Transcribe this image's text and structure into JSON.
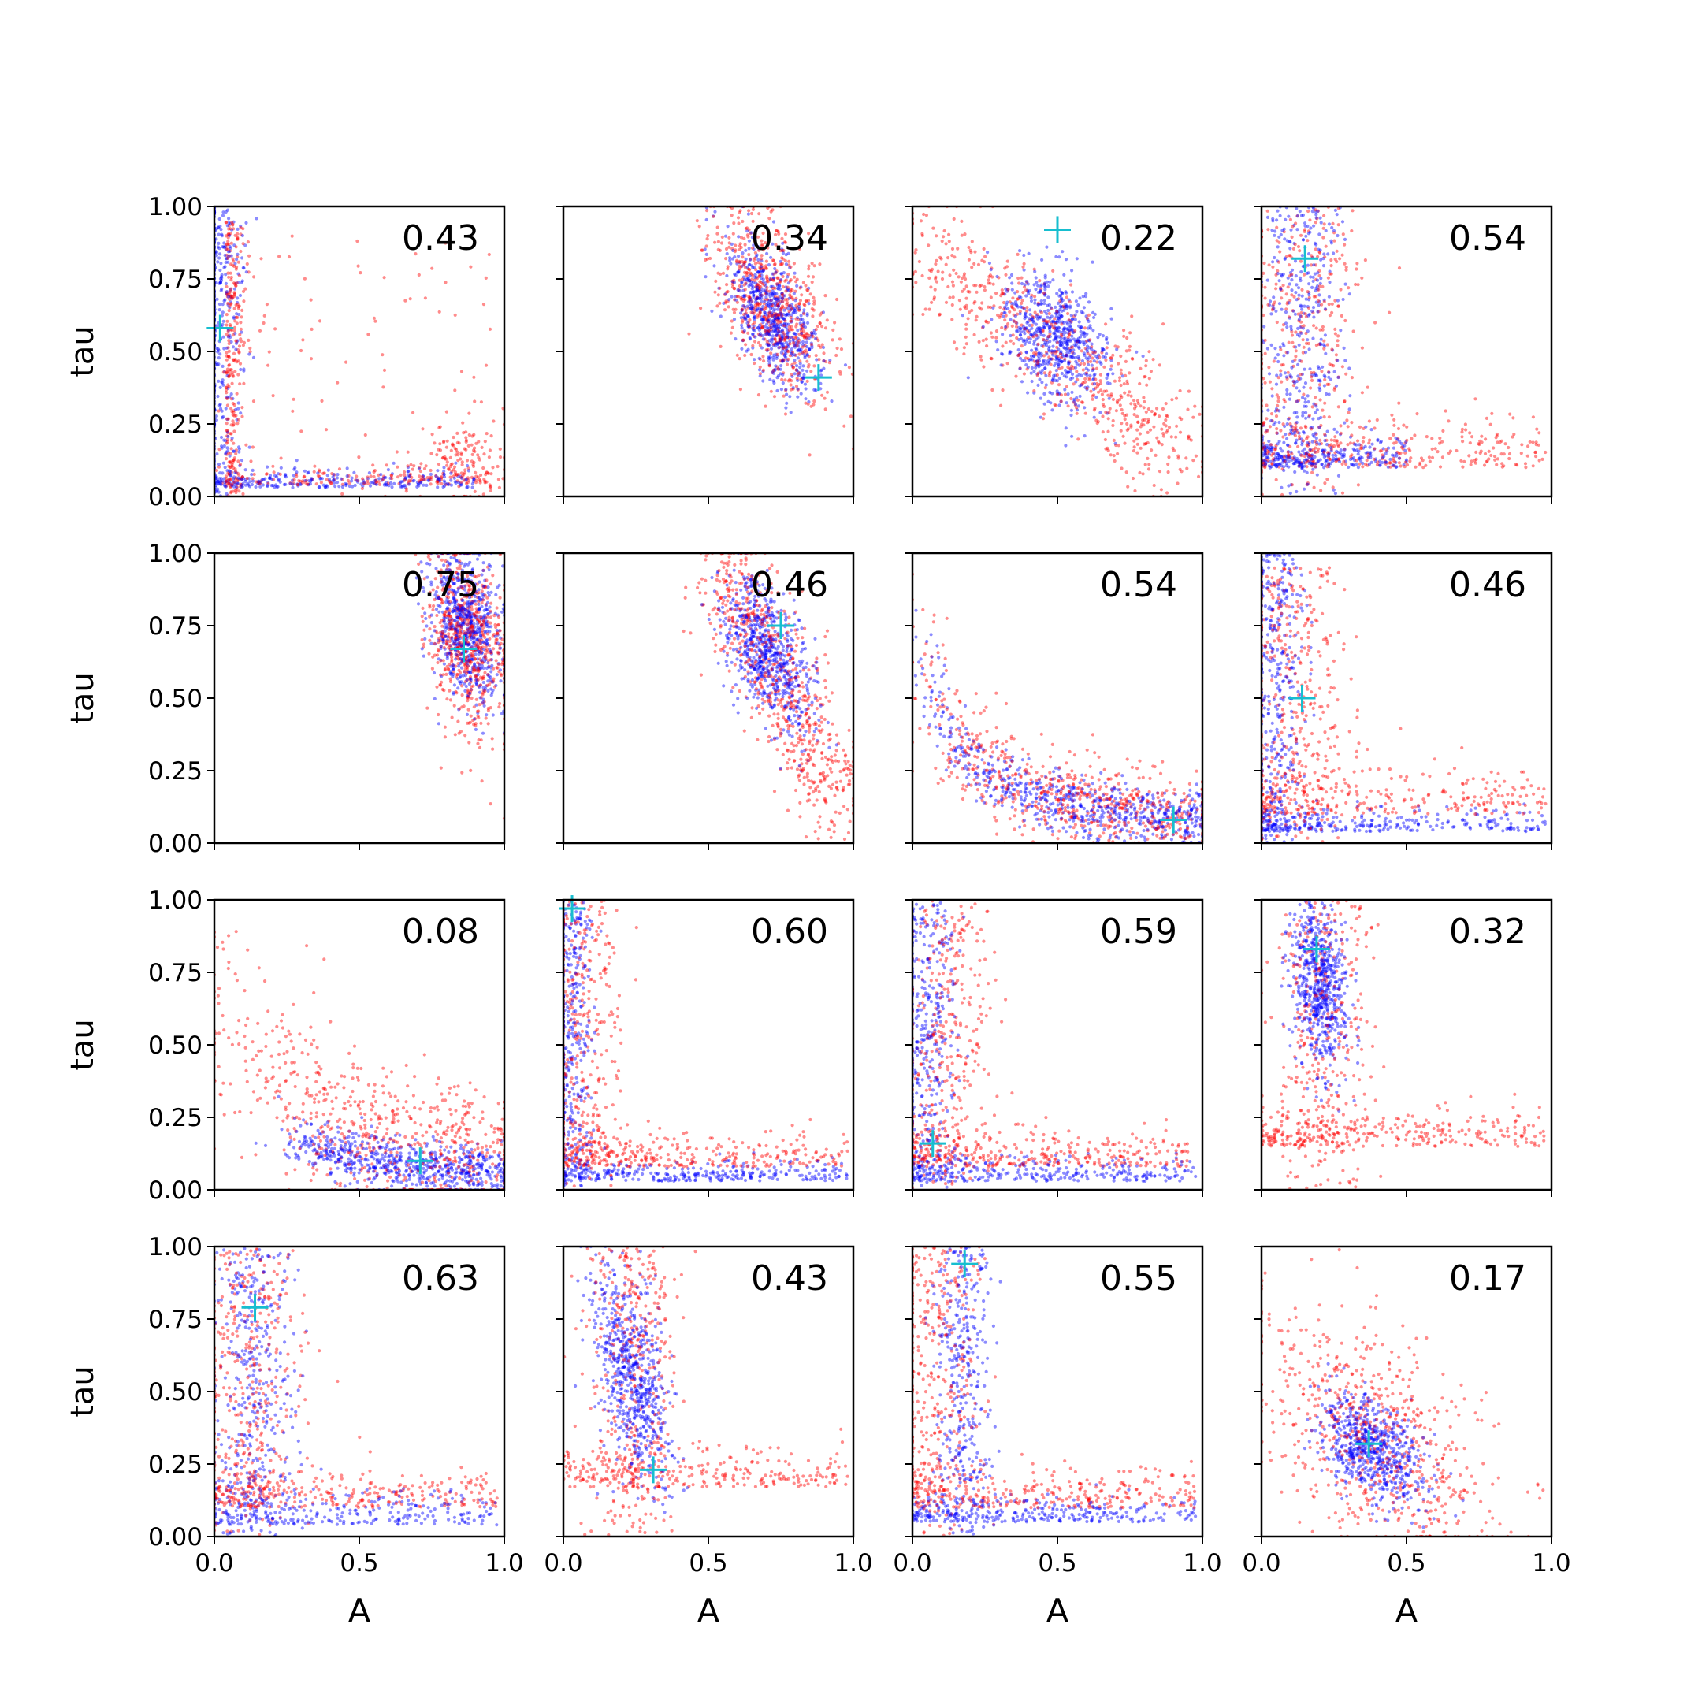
{
  "chart_data": {
    "type": "scatter",
    "layout": "4x4 grid of panels, shared axes",
    "xlabel": "A",
    "ylabel": "tau",
    "xlim": [
      0,
      1
    ],
    "ylim": [
      0,
      1
    ],
    "x_ticks": [
      "0.0",
      "0.5",
      "1.0"
    ],
    "y_ticks": [
      "0.00",
      "0.25",
      "0.50",
      "0.75",
      "1.00"
    ],
    "grid": false,
    "legend": "none",
    "colors": {
      "series_red": "#ff0000",
      "series_blue": "#0000ff",
      "marker": "#17becf"
    },
    "panels": [
      {
        "label": "0.43",
        "marker": [
          0.02,
          0.58
        ],
        "blue": {
          "shape": "L",
          "a": 0.02,
          "t": 0.03,
          "w": 0.04,
          "tailA": 0.9,
          "tailT": 1.0
        },
        "red": {
          "shape": "L-cluster",
          "a": 0.04,
          "t": 0.04,
          "cx": 0.85,
          "cy": 0.12
        }
      },
      {
        "label": "0.34",
        "marker": [
          0.88,
          0.41
        ],
        "blue": {
          "shape": "blob",
          "cx": 0.72,
          "cy": 0.62,
          "sx": 0.08,
          "sy": 0.13,
          "rho": -0.6
        },
        "red": {
          "shape": "blob",
          "cx": 0.72,
          "cy": 0.66,
          "sx": 0.11,
          "sy": 0.17,
          "rho": -0.55
        }
      },
      {
        "label": "0.22",
        "marker": [
          0.5,
          0.92
        ],
        "blue": {
          "shape": "blob",
          "cx": 0.5,
          "cy": 0.55,
          "sx": 0.09,
          "sy": 0.12,
          "rho": -0.35
        },
        "red": {
          "shape": "band",
          "x0": 0.05,
          "y0": 0.85,
          "x1": 0.95,
          "y1": 0.15,
          "spread": 0.1
        }
      },
      {
        "label": "0.54",
        "marker": [
          0.15,
          0.82
        ],
        "blue": {
          "shape": "L",
          "a": 0.14,
          "t": 0.1,
          "w": 0.07,
          "tailA": 0.5,
          "tailT": 1.0
        },
        "red": {
          "shape": "L",
          "a": 0.15,
          "t": 0.1,
          "w": 0.1,
          "tailA": 0.98,
          "tailT": 1.0
        }
      },
      {
        "label": "0.75",
        "marker": [
          0.86,
          0.67
        ],
        "blue": {
          "shape": "blob",
          "cx": 0.87,
          "cy": 0.74,
          "sx": 0.06,
          "sy": 0.13,
          "rho": -0.3
        },
        "red": {
          "shape": "blob",
          "cx": 0.87,
          "cy": 0.7,
          "sx": 0.07,
          "sy": 0.16,
          "rho": -0.3
        }
      },
      {
        "label": "0.46",
        "marker": [
          0.75,
          0.75
        ],
        "blue": {
          "shape": "blob",
          "cx": 0.7,
          "cy": 0.65,
          "sx": 0.08,
          "sy": 0.13,
          "rho": -0.55
        },
        "red": {
          "shape": "band",
          "x0": 0.55,
          "y0": 0.95,
          "x1": 0.95,
          "y1": 0.15,
          "spread": 0.09
        }
      },
      {
        "label": "0.54",
        "marker": [
          0.9,
          0.08
        ],
        "blue": {
          "shape": "curve",
          "k": 0.09,
          "sx": 0.03,
          "sy": 0.05
        },
        "red": {
          "shape": "curve",
          "k": 0.1,
          "sx": 0.06,
          "sy": 0.08
        }
      },
      {
        "label": "0.46",
        "marker": [
          0.14,
          0.5
        ],
        "blue": {
          "shape": "L",
          "a": 0.05,
          "t": 0.04,
          "w": 0.05,
          "tailA": 0.98,
          "tailT": 1.0
        },
        "red": {
          "shape": "L",
          "a": 0.1,
          "t": 0.1,
          "w": 0.1,
          "tailA": 0.98,
          "tailT": 0.95
        }
      },
      {
        "label": "0.08",
        "marker": [
          0.71,
          0.1
        ],
        "blue": {
          "shape": "curve",
          "k": 0.07,
          "sx": 0.05,
          "sy": 0.04,
          "amin": 0.25
        },
        "red": {
          "shape": "curve",
          "k": 0.15,
          "sx": 0.1,
          "sy": 0.12
        }
      },
      {
        "label": "0.60",
        "marker": [
          0.03,
          0.97
        ],
        "blue": {
          "shape": "L",
          "a": 0.03,
          "t": 0.03,
          "w": 0.04,
          "tailA": 0.98,
          "tailT": 1.0
        },
        "red": {
          "shape": "L",
          "a": 0.07,
          "t": 0.08,
          "w": 0.07,
          "tailA": 0.98,
          "tailT": 1.0
        }
      },
      {
        "label": "0.59",
        "marker": [
          0.07,
          0.16
        ],
        "blue": {
          "shape": "L",
          "a": 0.05,
          "t": 0.03,
          "w": 0.05,
          "tailA": 0.98,
          "tailT": 1.0
        },
        "red": {
          "shape": "L",
          "a": 0.12,
          "t": 0.08,
          "w": 0.08,
          "tailA": 0.98,
          "tailT": 1.0
        }
      },
      {
        "label": "0.32",
        "marker": [
          0.19,
          0.83
        ],
        "blue": {
          "shape": "blob",
          "cx": 0.2,
          "cy": 0.72,
          "sx": 0.05,
          "sy": 0.15,
          "rho": -0.2
        },
        "red": {
          "shape": "L",
          "a": 0.22,
          "t": 0.15,
          "w": 0.08,
          "tailA": 0.98,
          "tailT": 1.0
        }
      },
      {
        "label": "0.63",
        "marker": [
          0.14,
          0.79
        ],
        "blue": {
          "shape": "L",
          "a": 0.14,
          "t": 0.04,
          "w": 0.07,
          "tailA": 0.98,
          "tailT": 1.0
        },
        "red": {
          "shape": "L",
          "a": 0.12,
          "t": 0.1,
          "w": 0.09,
          "tailA": 0.98,
          "tailT": 1.0
        }
      },
      {
        "label": "0.43",
        "marker": [
          0.31,
          0.23
        ],
        "blue": {
          "shape": "blob",
          "cx": 0.24,
          "cy": 0.55,
          "sx": 0.07,
          "sy": 0.18,
          "rho": -0.5
        },
        "red": {
          "shape": "L",
          "a": 0.24,
          "t": 0.17,
          "w": 0.08,
          "tailA": 0.98,
          "tailT": 1.0
        }
      },
      {
        "label": "0.55",
        "marker": [
          0.18,
          0.94
        ],
        "blue": {
          "shape": "L",
          "a": 0.18,
          "t": 0.05,
          "w": 0.05,
          "tailA": 0.98,
          "tailT": 1.0
        },
        "red": {
          "shape": "L",
          "a": 0.08,
          "t": 0.1,
          "w": 0.08,
          "tailA": 0.98,
          "tailT": 1.0
        }
      },
      {
        "label": "0.17",
        "marker": [
          0.37,
          0.32
        ],
        "blue": {
          "shape": "blob",
          "cx": 0.38,
          "cy": 0.3,
          "sx": 0.09,
          "sy": 0.09,
          "rho": -0.4
        },
        "red": {
          "shape": "blob",
          "cx": 0.4,
          "cy": 0.35,
          "sx": 0.2,
          "sy": 0.22,
          "rho": -0.5
        }
      }
    ]
  }
}
